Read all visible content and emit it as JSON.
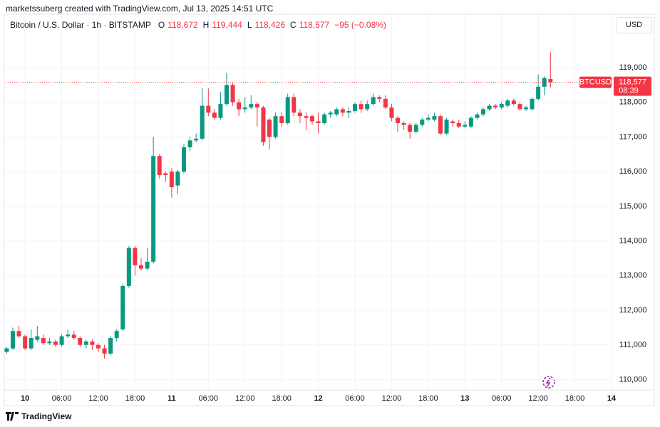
{
  "header": {
    "attribution": "marketssuberg created with TradingView.com, Jul 13, 2025 14:51 UTC",
    "symbol": "Bitcoin / U.S. Dollar · 1h · BITSTAMP",
    "ohlc": [
      {
        "key": "O",
        "value": "118,672"
      },
      {
        "key": "H",
        "value": "119,444"
      },
      {
        "key": "L",
        "value": "118,426"
      },
      {
        "key": "C",
        "value": "118,577"
      }
    ],
    "change": "−95 (−0.08%)",
    "currency": "USD"
  },
  "chart_data": {
    "type": "candlestick",
    "x": [
      "2025-07-09T21:00",
      "2025-07-09T22:00",
      "2025-07-09T23:00",
      "2025-07-10T00:00",
      "2025-07-10T01:00",
      "2025-07-10T02:00",
      "2025-07-10T03:00",
      "2025-07-10T04:00",
      "2025-07-10T05:00",
      "2025-07-10T06:00",
      "2025-07-10T07:00",
      "2025-07-10T08:00",
      "2025-07-10T09:00",
      "2025-07-10T10:00",
      "2025-07-10T11:00",
      "2025-07-10T12:00",
      "2025-07-10T13:00",
      "2025-07-10T14:00",
      "2025-07-10T15:00",
      "2025-07-10T16:00",
      "2025-07-10T17:00",
      "2025-07-10T18:00",
      "2025-07-10T19:00",
      "2025-07-10T20:00",
      "2025-07-10T21:00",
      "2025-07-10T22:00",
      "2025-07-10T23:00",
      "2025-07-11T00:00",
      "2025-07-11T01:00",
      "2025-07-11T02:00",
      "2025-07-11T03:00",
      "2025-07-11T04:00",
      "2025-07-11T05:00",
      "2025-07-11T06:00",
      "2025-07-11T07:00",
      "2025-07-11T08:00",
      "2025-07-11T09:00",
      "2025-07-11T10:00",
      "2025-07-11T11:00",
      "2025-07-11T12:00",
      "2025-07-11T13:00",
      "2025-07-11T14:00",
      "2025-07-11T15:00",
      "2025-07-11T16:00",
      "2025-07-11T17:00",
      "2025-07-11T18:00",
      "2025-07-11T19:00",
      "2025-07-11T20:00",
      "2025-07-11T21:00",
      "2025-07-11T22:00",
      "2025-07-11T23:00",
      "2025-07-12T00:00",
      "2025-07-12T01:00",
      "2025-07-12T02:00",
      "2025-07-12T03:00",
      "2025-07-12T04:00",
      "2025-07-12T05:00",
      "2025-07-12T06:00",
      "2025-07-12T07:00",
      "2025-07-12T08:00",
      "2025-07-12T09:00",
      "2025-07-12T10:00",
      "2025-07-12T11:00",
      "2025-07-12T12:00",
      "2025-07-12T13:00",
      "2025-07-12T14:00",
      "2025-07-12T15:00",
      "2025-07-12T16:00",
      "2025-07-12T17:00",
      "2025-07-12T18:00",
      "2025-07-12T19:00",
      "2025-07-12T20:00",
      "2025-07-12T21:00",
      "2025-07-12T22:00",
      "2025-07-12T23:00",
      "2025-07-13T00:00",
      "2025-07-13T01:00",
      "2025-07-13T02:00",
      "2025-07-13T03:00",
      "2025-07-13T04:00",
      "2025-07-13T05:00",
      "2025-07-13T06:00",
      "2025-07-13T07:00",
      "2025-07-13T08:00",
      "2025-07-13T09:00",
      "2025-07-13T10:00",
      "2025-07-13T11:00",
      "2025-07-13T12:00",
      "2025-07-13T13:00",
      "2025-07-13T14:00"
    ],
    "series": [
      {
        "name": "BTCUSD",
        "up_color": "#089981",
        "down_color": "#f23645",
        "open": [
          110800,
          110900,
          111400,
          111250,
          110900,
          111150,
          111200,
          111050,
          111100,
          111000,
          111250,
          111300,
          111200,
          111000,
          111100,
          111000,
          110900,
          110750,
          111200,
          111450,
          112700,
          113800,
          113300,
          113200,
          113400,
          116450,
          115950,
          116000,
          115600,
          116000,
          116700,
          116900,
          116950,
          117900,
          117700,
          117550,
          117950,
          118500,
          118000,
          117800,
          117850,
          117950,
          117850,
          117500,
          117000,
          117600,
          117400,
          118150,
          117700,
          117600,
          117600,
          117450,
          117400,
          117650,
          117650,
          117800,
          117700,
          117750,
          117950,
          117800,
          117950,
          118150,
          118100,
          117850,
          117550,
          117400,
          117350,
          117150,
          117350,
          117500,
          117500,
          117600,
          117100,
          117450,
          117400,
          117300,
          117300,
          117550,
          117650,
          117800,
          117900,
          117850,
          117900,
          118050,
          117950,
          117800,
          117800,
          118100,
          118450,
          118672
        ],
        "high": [
          110950,
          111500,
          111550,
          111300,
          111450,
          111550,
          111300,
          111200,
          111150,
          111300,
          111450,
          111400,
          111250,
          111150,
          111150,
          111050,
          111000,
          111250,
          111450,
          112750,
          113850,
          113850,
          113500,
          113800,
          117000,
          116500,
          116000,
          116100,
          116050,
          116800,
          117000,
          117100,
          118400,
          118400,
          117800,
          118300,
          118850,
          118550,
          118100,
          118150,
          118200,
          118000,
          117900,
          117550,
          117700,
          117700,
          118250,
          118250,
          117800,
          117700,
          117650,
          117700,
          117700,
          117750,
          117850,
          117850,
          117850,
          118000,
          118050,
          118050,
          118250,
          118200,
          118200,
          117950,
          117600,
          117450,
          117400,
          117400,
          117550,
          117650,
          117700,
          117650,
          117550,
          117500,
          117500,
          117450,
          117600,
          117700,
          117850,
          117950,
          117950,
          118000,
          118100,
          118100,
          118000,
          117900,
          118150,
          118800,
          118750,
          119444
        ],
        "low": [
          110750,
          110850,
          111200,
          110850,
          110850,
          111100,
          111000,
          111000,
          110950,
          110950,
          111200,
          111150,
          110950,
          110900,
          110850,
          110800,
          110600,
          110700,
          111100,
          111400,
          112650,
          113000,
          113150,
          113150,
          113350,
          115800,
          115700,
          115250,
          115350,
          115950,
          116600,
          116850,
          116900,
          117600,
          117500,
          117500,
          117900,
          117900,
          117600,
          117700,
          117800,
          117300,
          116750,
          116650,
          116950,
          117300,
          117350,
          117600,
          117400,
          117200,
          117350,
          117100,
          117350,
          117550,
          117600,
          117600,
          117550,
          117700,
          117700,
          117750,
          117900,
          118000,
          117800,
          117450,
          117150,
          117200,
          116950,
          117100,
          117300,
          117450,
          117450,
          117050,
          117050,
          117300,
          117250,
          117250,
          117250,
          117500,
          117600,
          117750,
          117800,
          117800,
          117850,
          117900,
          117750,
          117750,
          117750,
          118050,
          118200,
          118426
        ],
        "close": [
          110900,
          111400,
          111250,
          110900,
          111200,
          111250,
          111050,
          111100,
          111000,
          111250,
          111300,
          111200,
          111000,
          111100,
          111000,
          110900,
          110750,
          111200,
          111400,
          112700,
          113800,
          113300,
          113200,
          113400,
          116450,
          115900,
          115900,
          115550,
          116000,
          116700,
          116900,
          116950,
          117900,
          117700,
          117550,
          117950,
          118500,
          118000,
          117800,
          117850,
          117950,
          117850,
          116850,
          117000,
          117600,
          117400,
          118150,
          117700,
          117600,
          117550,
          117450,
          117400,
          117650,
          117700,
          117800,
          117700,
          117750,
          117950,
          117800,
          117950,
          118150,
          118100,
          117850,
          117550,
          117400,
          117350,
          117150,
          117350,
          117500,
          117550,
          117600,
          117100,
          117500,
          117400,
          117300,
          117350,
          117550,
          117650,
          117800,
          117900,
          117850,
          117950,
          118050,
          117950,
          117800,
          117850,
          118100,
          118450,
          118700,
          118577
        ]
      }
    ],
    "last_price": {
      "value": 118577,
      "label": "118,577"
    },
    "countdown": "08:39",
    "xlim": [
      "2025-07-09T20:50",
      "2025-07-14T00:00"
    ],
    "xticks": [
      {
        "value": "2025-07-10T00:00",
        "label": "10"
      },
      {
        "value": "2025-07-10T06:00",
        "label": "06:00"
      },
      {
        "value": "2025-07-10T12:00",
        "label": "12:00"
      },
      {
        "value": "2025-07-10T18:00",
        "label": "18:00"
      },
      {
        "value": "2025-07-11T00:00",
        "label": "11"
      },
      {
        "value": "2025-07-11T06:00",
        "label": "06:00"
      },
      {
        "value": "2025-07-11T12:00",
        "label": "12:00"
      },
      {
        "value": "2025-07-11T18:00",
        "label": "18:00"
      },
      {
        "value": "2025-07-12T00:00",
        "label": "12"
      },
      {
        "value": "2025-07-12T06:00",
        "label": "06:00"
      },
      {
        "value": "2025-07-12T12:00",
        "label": "12:00"
      },
      {
        "value": "2025-07-12T18:00",
        "label": "18:00"
      },
      {
        "value": "2025-07-13T00:00",
        "label": "13"
      },
      {
        "value": "2025-07-13T06:00",
        "label": "06:00"
      },
      {
        "value": "2025-07-13T12:00",
        "label": "12:00"
      },
      {
        "value": "2025-07-13T18:00",
        "label": "18:00"
      },
      {
        "value": "2025-07-14T00:00",
        "label": "14"
      }
    ],
    "ylim": [
      109700,
      120540
    ],
    "yticks": [
      {
        "value": 110000,
        "label": "110,000"
      },
      {
        "value": 111000,
        "label": "111,000"
      },
      {
        "value": 112000,
        "label": "112,000"
      },
      {
        "value": 113000,
        "label": "113,000"
      },
      {
        "value": 114000,
        "label": "114,000"
      },
      {
        "value": 115000,
        "label": "115,000"
      },
      {
        "value": 116000,
        "label": "116,000"
      },
      {
        "value": 117000,
        "label": "117,000"
      },
      {
        "value": 118000,
        "label": "118,000"
      },
      {
        "value": 119000,
        "label": "119,000"
      }
    ],
    "grid": true
  },
  "footer": {
    "logo": "TradingView"
  }
}
